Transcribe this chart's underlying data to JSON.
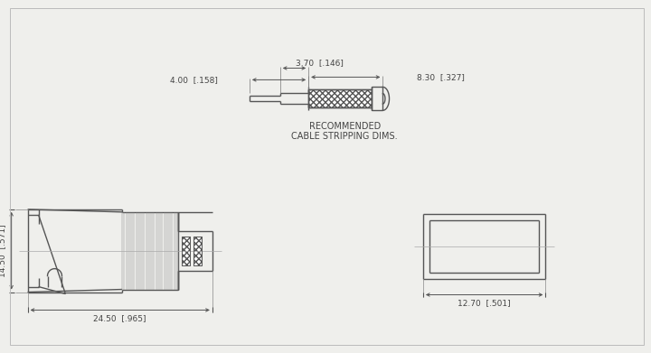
{
  "bg_color": "#efefec",
  "line_color": "#555555",
  "dim_color": "#555555",
  "text_color": "#444444",
  "font_family": "Arial",
  "title_line1": "RECOMMENDED",
  "title_line2": "CABLE STRIPPING DIMS.",
  "dim_top_4": "4.00  [.158]",
  "dim_top_370": "3.70  [.146]",
  "dim_top_830": "8.30  [.327]",
  "dim_bot_2450": "24.50  [.965]",
  "dim_left_1450": "14.50  [.571]",
  "dim_right_1270": "12.70  [.501]"
}
